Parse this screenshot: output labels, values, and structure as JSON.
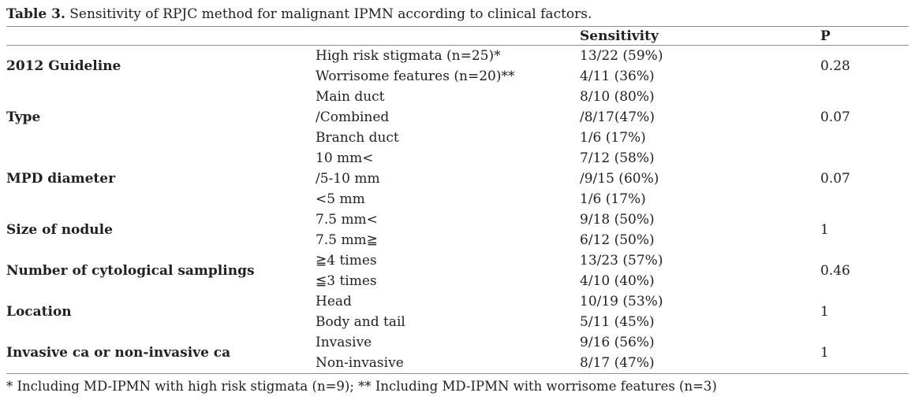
{
  "title": {
    "label": "Table 3.",
    "text": " Sensitivity of RPJC method for malignant IPMN according to clinical factors."
  },
  "table": {
    "headers": {
      "factor": "",
      "subgroup": "",
      "sensitivity": "Sensitivity",
      "p": "P"
    },
    "groups": [
      {
        "factor": "2012 Guideline",
        "p": "0.28",
        "rows": [
          {
            "subgroup": "High risk stigmata (n=25)*",
            "sensitivity": "13/22 (59%)"
          },
          {
            "subgroup": "Worrisome features (n=20)**",
            "sensitivity": "4/11 (36%)"
          }
        ]
      },
      {
        "factor": "Type",
        "p": "0.07",
        "rows": [
          {
            "subgroup": "Main duct",
            "sensitivity": "8/10 (80%)"
          },
          {
            "subgroup": "/Combined",
            "sensitivity": "/8/17(47%)"
          },
          {
            "subgroup": "Branch duct",
            "sensitivity": "1/6 (17%)"
          }
        ]
      },
      {
        "factor": "MPD diameter",
        "p": "0.07",
        "rows": [
          {
            "subgroup": "10 mm<",
            "sensitivity": "7/12 (58%)"
          },
          {
            "subgroup": "/5-10 mm",
            "sensitivity": "/9/15 (60%)"
          },
          {
            "subgroup": "<5 mm",
            "sensitivity": "1/6 (17%)"
          }
        ]
      },
      {
        "factor": "Size of nodule",
        "p": "1",
        "rows": [
          {
            "subgroup": "7.5 mm<",
            "sensitivity": "9/18 (50%)"
          },
          {
            "subgroup": "7.5 mm≧",
            "sensitivity": "6/12 (50%)"
          }
        ]
      },
      {
        "factor": "Number of cytological samplings",
        "p": "0.46",
        "rows": [
          {
            "subgroup": "≧4 times",
            "sensitivity": "13/23 (57%)"
          },
          {
            "subgroup": "≦3 times",
            "sensitivity": "4/10 (40%)"
          }
        ]
      },
      {
        "factor": "Location",
        "p": "1",
        "rows": [
          {
            "subgroup": "Head",
            "sensitivity": "10/19 (53%)"
          },
          {
            "subgroup": "Body and tail",
            "sensitivity": "5/11 (45%)"
          }
        ]
      },
      {
        "factor": "Invasive ca or non-invasive ca",
        "p": "1",
        "rows": [
          {
            "subgroup": "Invasive",
            "sensitivity": "9/16 (56%)"
          },
          {
            "subgroup": "Non-invasive",
            "sensitivity": "8/17 (47%)"
          }
        ]
      }
    ]
  },
  "footnote": "* Including MD-IPMN with high risk stigmata (n=9); ** Including MD-IPMN with worrisome features (n=3)"
}
